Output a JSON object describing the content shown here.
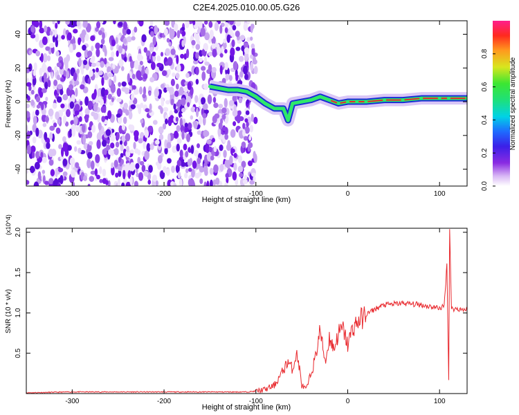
{
  "title": "C2E4.2025.010.00.05.G26",
  "colors": {
    "snr_line": "#e8262b",
    "spectrogram_noise": "#7a1fe8",
    "spectrogram_ridge_core": "#e8262b",
    "spectrogram_ridge_mid": "#2ee86a",
    "spectrogram_ridge_edge": "#1a2bd6"
  },
  "chart_data": [
    {
      "type": "heatmap",
      "name": "spectrogram",
      "xlabel": "Height of straight line (km)",
      "ylabel": "Frequency (Hz)",
      "xlim": [
        -350,
        130
      ],
      "ylim": [
        -50,
        48
      ],
      "x_ticks": [
        -300,
        -200,
        -100,
        0,
        100
      ],
      "y_ticks": [
        -40,
        -20,
        0,
        20,
        40
      ],
      "colorbar": {
        "label": "Normalized spectral amplitude",
        "range": [
          0.0,
          1.0
        ],
        "ticks": [
          "0.0",
          "0.2",
          "0.4",
          "0.6",
          "0.8"
        ],
        "colormap": "rainbow (white → purple → blue → cyan → green → yellow → red → magenta)"
      },
      "noise_region": {
        "x_range": [
          -350,
          -100
        ],
        "amplitude": "low (~0.1-0.3)"
      },
      "ridge": {
        "description": "dominant frequency track, amplitude ~0.9-1.0",
        "points": [
          [
            -150,
            9
          ],
          [
            -140,
            8
          ],
          [
            -130,
            7
          ],
          [
            -120,
            7
          ],
          [
            -110,
            6
          ],
          [
            -100,
            3
          ],
          [
            -90,
            -1
          ],
          [
            -80,
            -4
          ],
          [
            -70,
            -4
          ],
          [
            -65,
            -11
          ],
          [
            -60,
            -1
          ],
          [
            -50,
            0
          ],
          [
            -40,
            1
          ],
          [
            -30,
            3
          ],
          [
            -20,
            1
          ],
          [
            -10,
            -1
          ],
          [
            0,
            0
          ],
          [
            10,
            0
          ],
          [
            20,
            0
          ],
          [
            40,
            1
          ],
          [
            60,
            1
          ],
          [
            80,
            2
          ],
          [
            100,
            2
          ],
          [
            110,
            2
          ],
          [
            130,
            2
          ]
        ]
      },
      "grid": false
    },
    {
      "type": "line",
      "name": "snr",
      "xlabel": "Height of straight line (km)",
      "ylabel": "SNR (10 * v/v)",
      "y_multiplier": "(x10^4)",
      "xlim": [
        -350,
        130
      ],
      "ylim": [
        0,
        2.05
      ],
      "x_ticks": [
        -300,
        -200,
        -100,
        0,
        100
      ],
      "y_ticks": [
        "0.5",
        "1.0",
        "1.5",
        "2.0"
      ],
      "series": [
        {
          "values_unit": "x10^4",
          "points": [
            [
              -350,
              0.01
            ],
            [
              -300,
              0.02
            ],
            [
              -250,
              0.02
            ],
            [
              -200,
              0.02
            ],
            [
              -150,
              0.02
            ],
            [
              -110,
              0.02
            ],
            [
              -100,
              0.03
            ],
            [
              -90,
              0.05
            ],
            [
              -80,
              0.1
            ],
            [
              -72,
              0.25
            ],
            [
              -65,
              0.4
            ],
            [
              -60,
              0.3
            ],
            [
              -56,
              0.5
            ],
            [
              -53,
              0.35
            ],
            [
              -50,
              0.1
            ],
            [
              -45,
              0.05
            ],
            [
              -40,
              0.25
            ],
            [
              -35,
              0.45
            ],
            [
              -30,
              0.8
            ],
            [
              -27,
              0.55
            ],
            [
              -24,
              0.4
            ],
            [
              -20,
              0.7
            ],
            [
              -15,
              0.55
            ],
            [
              -10,
              0.75
            ],
            [
              -5,
              0.8
            ],
            [
              0,
              0.6
            ],
            [
              5,
              0.8
            ],
            [
              10,
              0.88
            ],
            [
              20,
              0.98
            ],
            [
              30,
              1.05
            ],
            [
              40,
              1.1
            ],
            [
              60,
              1.12
            ],
            [
              80,
              1.1
            ],
            [
              100,
              1.06
            ],
            [
              105,
              1.08
            ],
            [
              108,
              1.6
            ],
            [
              110,
              0.2
            ],
            [
              111,
              2.05
            ],
            [
              113,
              1.05
            ],
            [
              120,
              1.05
            ],
            [
              130,
              1.04
            ]
          ]
        }
      ],
      "grid": false
    }
  ]
}
